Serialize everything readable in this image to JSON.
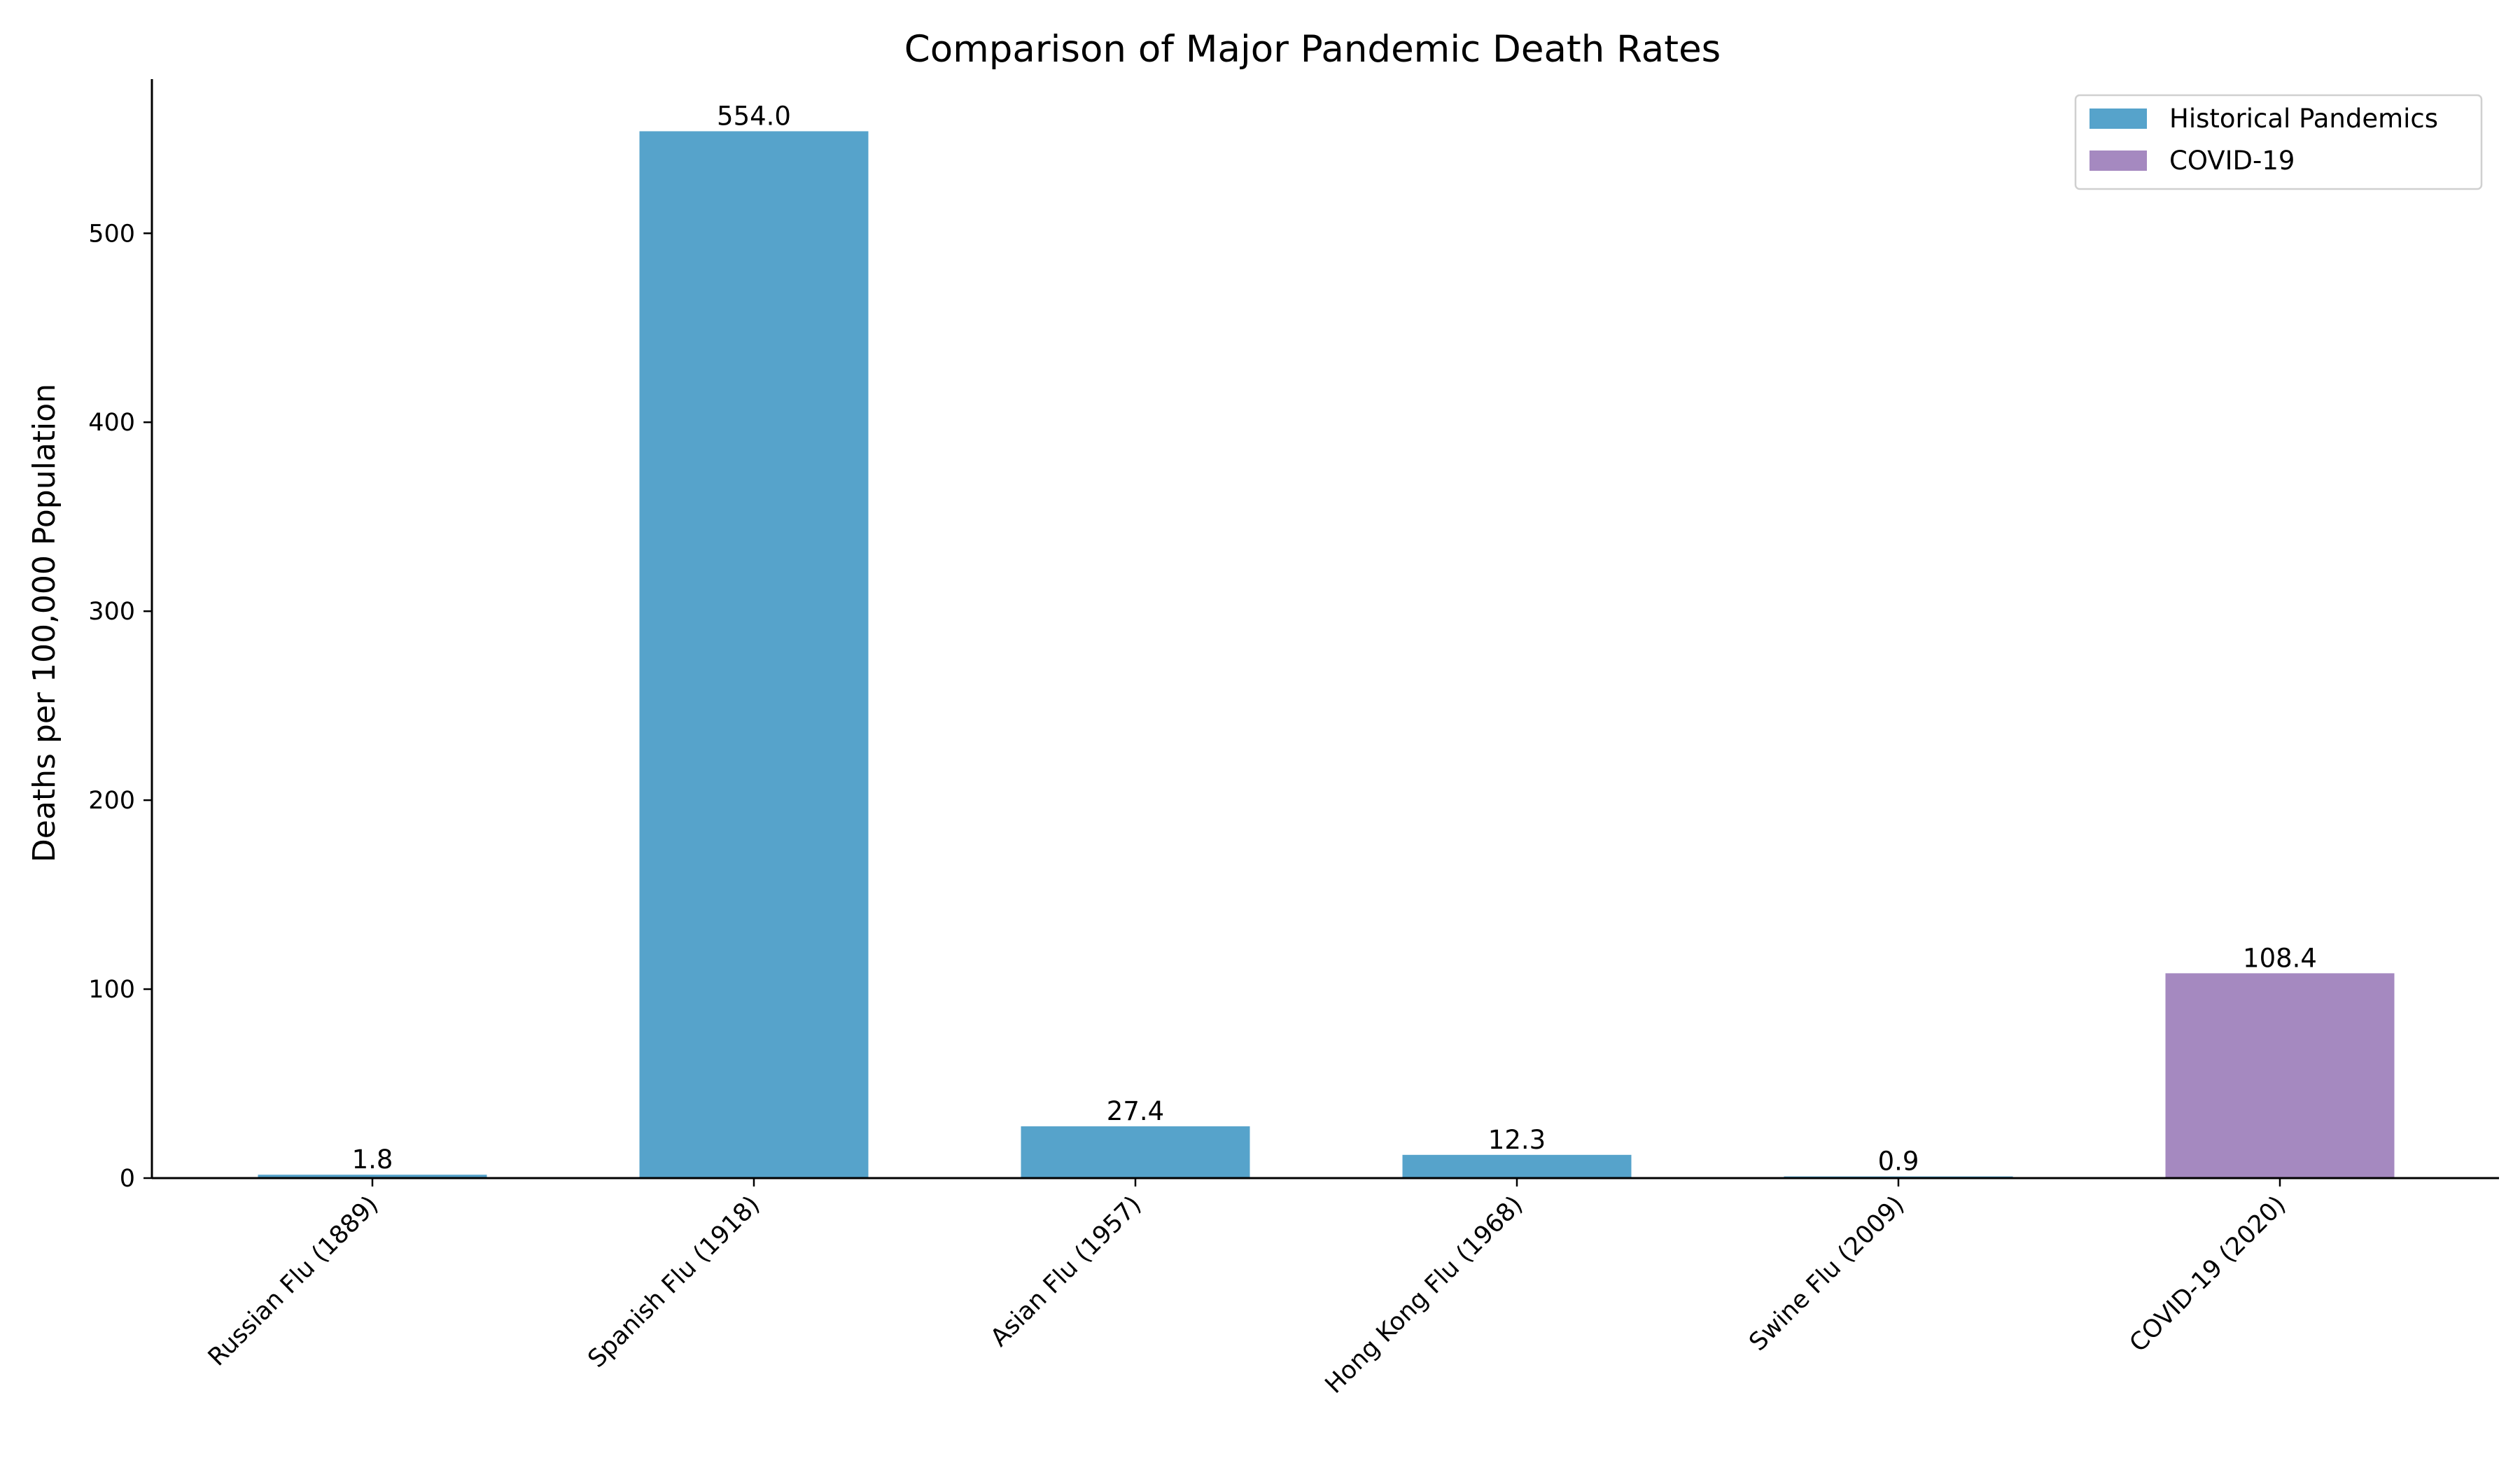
{
  "chart_data": {
    "type": "bar",
    "title": "Comparison of Major Pandemic Death Rates",
    "xlabel": "",
    "ylabel": "Deaths per 100,000 Population",
    "categories": [
      "Russian Flu (1889)",
      "Spanish Flu (1918)",
      "Asian Flu (1957)",
      "Hong Kong Flu (1968)",
      "Swine Flu (2009)",
      "COVID-19 (2020)"
    ],
    "values": [
      1.8,
      554.0,
      27.4,
      12.3,
      0.9,
      108.4
    ],
    "value_labels": [
      "1.8",
      "554.0",
      "27.4",
      "12.3",
      "0.9",
      "108.4"
    ],
    "bar_group": [
      0,
      0,
      0,
      0,
      0,
      1
    ],
    "legend": {
      "position": "top-right",
      "entries": [
        {
          "name": "Historical Pandemics",
          "color": "#56a3cb"
        },
        {
          "name": "COVID-19",
          "color": "#a589c0"
        }
      ]
    },
    "ylim": [
      0,
      581.6
    ],
    "yticks": [
      0,
      100,
      200,
      300,
      400,
      500
    ],
    "grid": false
  }
}
